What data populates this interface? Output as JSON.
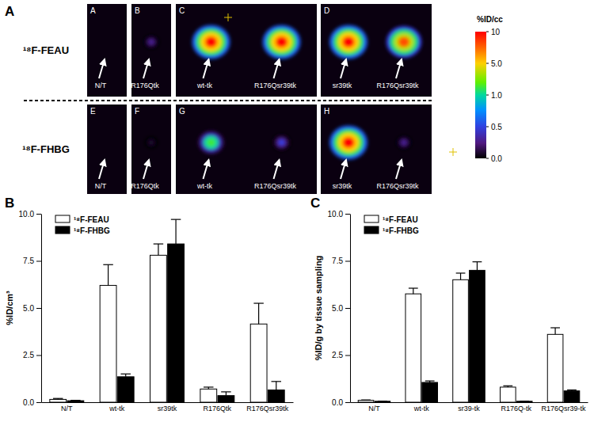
{
  "panel_a": {
    "label": "A",
    "rows": [
      {
        "tracer": "¹⁸F-FEAU",
        "tiles": [
          {
            "letter": "A",
            "cells": [
              {
                "label": "N/T",
                "uptake": 0
              }
            ]
          },
          {
            "letter": "B",
            "cells": [
              {
                "label": "R176Qtk",
                "uptake": 0.3
              }
            ]
          },
          {
            "letter": "C",
            "cells": [
              {
                "label": "wt-tk",
                "uptake": 10
              },
              {
                "label": "R176Qsr39tk",
                "uptake": 10
              }
            ]
          },
          {
            "letter": "D",
            "cells": [
              {
                "label": "sr39tk",
                "uptake": 10
              },
              {
                "label": "R176Qsr39tk",
                "uptake": 8
              }
            ]
          }
        ]
      },
      {
        "tracer": "¹⁸F-FHBG",
        "tiles": [
          {
            "letter": "E",
            "cells": [
              {
                "label": "N/T",
                "uptake": 0
              }
            ]
          },
          {
            "letter": "F",
            "cells": [
              {
                "label": "R176Qtk",
                "uptake": 0.1
              }
            ]
          },
          {
            "letter": "G",
            "cells": [
              {
                "label": "wt-tk",
                "uptake": 2
              },
              {
                "label": "R176Qsr39tk",
                "uptake": 0.5
              }
            ]
          },
          {
            "letter": "H",
            "cells": [
              {
                "label": "sr39tk",
                "uptake": 10
              },
              {
                "label": "R176Qsr39tk",
                "uptake": 0.3
              }
            ]
          }
        ]
      }
    ],
    "colorbar": {
      "label": "%ID/cc",
      "ticks": [
        10,
        {
          "value": 5,
          "label": "5.0"
        },
        {
          "value": 1,
          "label": "1.0"
        },
        {
          "value": 0.5,
          "label": "0.5"
        },
        {
          "value": 0,
          "label": "0.0"
        }
      ]
    }
  },
  "chart_data": [
    {
      "type": "bar",
      "panel": "B",
      "y_label": "%ID/cm³",
      "categories": [
        "N/T",
        "wt-tk",
        "sr39tk",
        "R176Qtk",
        "R176Qsr39tk"
      ],
      "series": [
        {
          "name": "¹⁸F-FEAU",
          "color": "#ffffff",
          "values": [
            0.15,
            6.2,
            7.8,
            0.7,
            4.15
          ],
          "errors": [
            0.05,
            1.1,
            0.6,
            0.1,
            1.1
          ]
        },
        {
          "name": "¹⁸F-FHBG",
          "color": "#000000",
          "values": [
            0.08,
            1.35,
            8.4,
            0.35,
            0.65
          ],
          "errors": [
            0.02,
            0.15,
            1.3,
            0.2,
            0.45
          ]
        }
      ],
      "ylim": [
        0,
        10
      ],
      "yticks": [
        {
          "value": 0,
          "label": "0.0"
        },
        {
          "value": 2.5,
          "label": "2.5"
        },
        {
          "value": 5,
          "label": "5.0"
        },
        {
          "value": 7.5,
          "label": "7.5"
        },
        {
          "value": 10,
          "label": "10.0"
        }
      ],
      "legend": "upper left"
    },
    {
      "type": "bar",
      "panel": "C",
      "y_label": "%ID/g by tissue sampling",
      "categories": [
        "N/T",
        "wt-tk",
        "sr39-tk",
        "R176Q-tk",
        "R176Qsr39-tk"
      ],
      "series": [
        {
          "name": "¹⁸F-FEAU",
          "color": "#ffffff",
          "values": [
            0.1,
            5.75,
            6.5,
            0.8,
            3.6
          ],
          "errors": [
            0.02,
            0.3,
            0.35,
            0.07,
            0.35
          ]
        },
        {
          "name": "¹⁸F-FHBG",
          "color": "#000000",
          "values": [
            0.05,
            1.05,
            7.0,
            0.05,
            0.6
          ],
          "errors": [
            0.01,
            0.08,
            0.45,
            0.01,
            0.05
          ]
        }
      ],
      "ylim": [
        0,
        10
      ],
      "yticks": [
        {
          "value": 0,
          "label": "0.0"
        },
        {
          "value": 2.5,
          "label": "2.5"
        },
        {
          "value": 5,
          "label": "5.0"
        },
        {
          "value": 7.5,
          "label": "7.5"
        },
        {
          "value": 10,
          "label": "10.0"
        }
      ],
      "legend": "upper left"
    }
  ]
}
